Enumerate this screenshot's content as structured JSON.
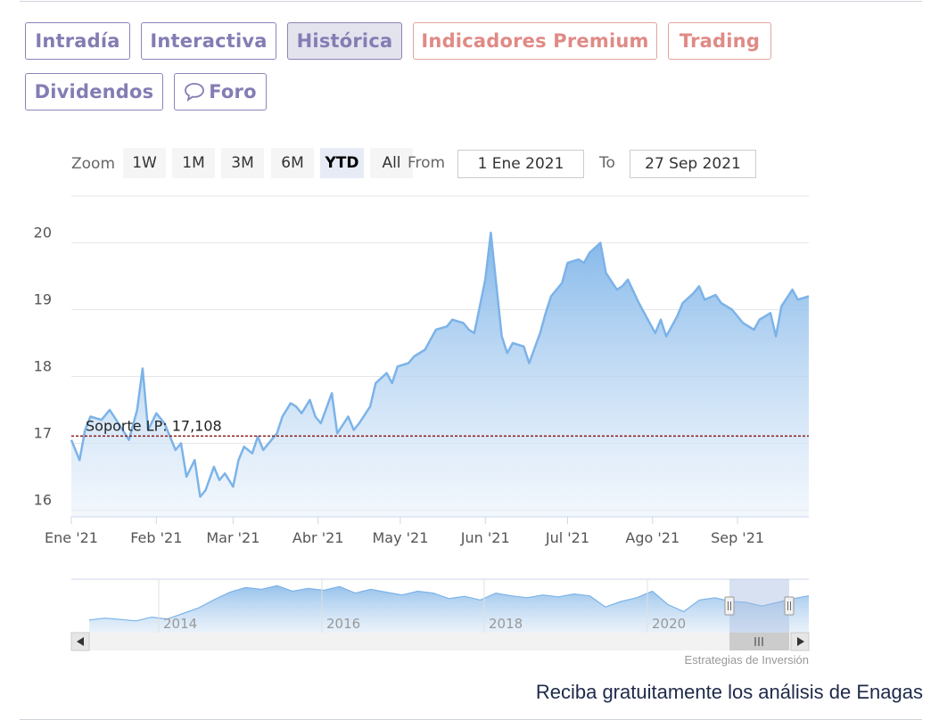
{
  "tabs": [
    {
      "label": "Intradía"
    },
    {
      "label": "Interactiva"
    },
    {
      "label": "Histórica",
      "active": true
    },
    {
      "label": "Indicadores Premium",
      "premium": true
    },
    {
      "label": "Trading",
      "premium": true
    },
    {
      "label": "Dividendos"
    },
    {
      "label": "Foro",
      "icon": "speech-bubble-icon"
    }
  ],
  "range_selector": {
    "zoom_label": "Zoom",
    "buttons": [
      "1W",
      "1M",
      "3M",
      "6M",
      "YTD",
      "All"
    ],
    "selected": "YTD",
    "from_label": "From",
    "from_value": "1 Ene 2021",
    "to_label": "To",
    "to_value": "27 Sep 2021"
  },
  "chart_data": {
    "type": "area",
    "title": "",
    "xlabel": "",
    "ylabel": "",
    "ylim": [
      15.9,
      20.7
    ],
    "yticks": [
      "16",
      "17",
      "18",
      "19",
      "20"
    ],
    "x_tick_labels": [
      "Ene '21",
      "Feb '21",
      "Mar '21",
      "Abr '21",
      "May '21",
      "Jun '21",
      "Jul '21",
      "Ago '21",
      "Sep '21"
    ],
    "x_range": [
      "2021-01-01",
      "2021-09-27"
    ],
    "grid": true,
    "series": [
      {
        "x": [
          "2021-01-01",
          "2021-01-04",
          "2021-01-06",
          "2021-01-08",
          "2021-01-12",
          "2021-01-15",
          "2021-01-19",
          "2021-01-22",
          "2021-01-25",
          "2021-01-27",
          "2021-01-29",
          "2021-02-01",
          "2021-02-04",
          "2021-02-08",
          "2021-02-10",
          "2021-02-12",
          "2021-02-15",
          "2021-02-17",
          "2021-02-19",
          "2021-02-22",
          "2021-02-24",
          "2021-02-26",
          "2021-03-01",
          "2021-03-03",
          "2021-03-05",
          "2021-03-08",
          "2021-03-10",
          "2021-03-12",
          "2021-03-15",
          "2021-03-17",
          "2021-03-19",
          "2021-03-22",
          "2021-03-24",
          "2021-03-26",
          "2021-03-29",
          "2021-03-31",
          "2021-04-02",
          "2021-04-06",
          "2021-04-08",
          "2021-04-12",
          "2021-04-14",
          "2021-04-16",
          "2021-04-20",
          "2021-04-22",
          "2021-04-26",
          "2021-04-28",
          "2021-04-30",
          "2021-05-04",
          "2021-05-06",
          "2021-05-10",
          "2021-05-12",
          "2021-05-14",
          "2021-05-18",
          "2021-05-20",
          "2021-05-24",
          "2021-05-26",
          "2021-05-28",
          "2021-06-01",
          "2021-06-03",
          "2021-06-07",
          "2021-06-09",
          "2021-06-11",
          "2021-06-15",
          "2021-06-17",
          "2021-06-21",
          "2021-06-23",
          "2021-06-25",
          "2021-06-29",
          "2021-07-01",
          "2021-07-05",
          "2021-07-07",
          "2021-07-09",
          "2021-07-13",
          "2021-07-15",
          "2021-07-19",
          "2021-07-21",
          "2021-07-23",
          "2021-07-27",
          "2021-07-29",
          "2021-08-02",
          "2021-08-04",
          "2021-08-06",
          "2021-08-10",
          "2021-08-12",
          "2021-08-16",
          "2021-08-18",
          "2021-08-20",
          "2021-08-24",
          "2021-08-26",
          "2021-08-30",
          "2021-09-01",
          "2021-09-03",
          "2021-09-07",
          "2021-09-09",
          "2021-09-13",
          "2021-09-15",
          "2021-09-17",
          "2021-09-21",
          "2021-09-23",
          "2021-09-27"
        ],
        "y": [
          17.05,
          16.75,
          17.2,
          17.4,
          17.35,
          17.5,
          17.25,
          17.05,
          17.5,
          18.12,
          17.2,
          17.45,
          17.3,
          16.9,
          17.0,
          16.5,
          16.75,
          16.2,
          16.3,
          16.65,
          16.45,
          16.55,
          16.35,
          16.75,
          16.95,
          16.85,
          17.1,
          16.9,
          17.05,
          17.15,
          17.4,
          17.6,
          17.55,
          17.45,
          17.65,
          17.4,
          17.3,
          17.75,
          17.15,
          17.4,
          17.2,
          17.3,
          17.55,
          17.9,
          18.05,
          17.9,
          18.15,
          18.2,
          18.3,
          18.4,
          18.55,
          18.7,
          18.75,
          18.85,
          18.8,
          18.7,
          18.65,
          19.45,
          20.15,
          18.6,
          18.35,
          18.5,
          18.45,
          18.2,
          18.65,
          18.95,
          19.2,
          19.4,
          19.7,
          19.75,
          19.7,
          19.85,
          20.0,
          19.55,
          19.3,
          19.35,
          19.45,
          19.1,
          18.95,
          18.65,
          18.85,
          18.6,
          18.9,
          19.1,
          19.25,
          19.35,
          19.15,
          19.22,
          19.1,
          19.0,
          18.9,
          18.8,
          18.7,
          18.85,
          18.95,
          18.6,
          19.05,
          19.3,
          19.15,
          19.2
        ]
      }
    ],
    "annotations": [
      {
        "label": "Soporte LP: 17,108",
        "y": 17.108,
        "style": "dashed",
        "color": "#8b1a1a"
      }
    ],
    "navigator": {
      "x_tick_labels": [
        "2014",
        "2016",
        "2018",
        "2020"
      ]
    }
  },
  "credit": "Estrategias de Inversión",
  "cta": "Reciba gratuitamente los análisis de Enagas"
}
